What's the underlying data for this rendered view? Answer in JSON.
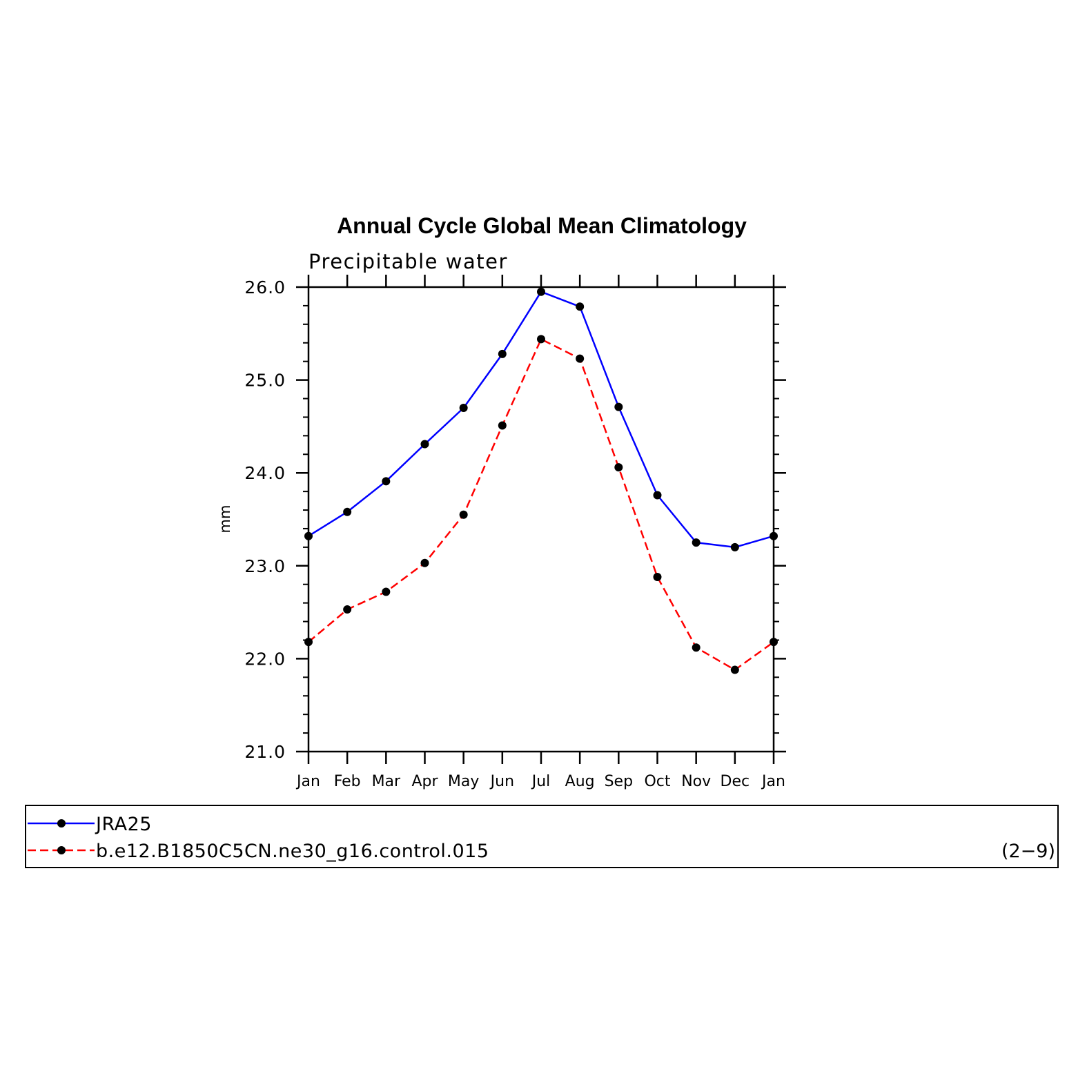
{
  "chart_data": {
    "type": "line",
    "title": "Annual Cycle Global Mean Climatology",
    "subtitle": "Precipitable water",
    "xlabel": "",
    "ylabel": "mm",
    "ylim": [
      21.0,
      26.0
    ],
    "yticks": [
      "21.0",
      "22.0",
      "23.0",
      "24.0",
      "25.0",
      "26.0"
    ],
    "categories": [
      "Jan",
      "Feb",
      "Mar",
      "Apr",
      "May",
      "Jun",
      "Jul",
      "Aug",
      "Sep",
      "Oct",
      "Nov",
      "Dec",
      "Jan"
    ],
    "series": [
      {
        "name": "JRA25",
        "color": "#0000ff",
        "dash": "solid",
        "marker": "filled-circle",
        "values": [
          23.32,
          23.58,
          23.91,
          24.31,
          24.7,
          25.28,
          25.95,
          25.79,
          24.71,
          23.76,
          23.25,
          23.2,
          23.32
        ]
      },
      {
        "name": "b.e12.B1850C5CN.ne30_g16.control.015",
        "color": "#ff0000",
        "dash": "dashed",
        "marker": "filled-circle",
        "values": [
          22.18,
          22.53,
          22.72,
          23.03,
          23.55,
          24.51,
          25.44,
          25.23,
          24.06,
          22.88,
          22.12,
          21.88,
          22.18
        ]
      }
    ],
    "legend_position": "bottom",
    "panel_id": "(2−9)"
  }
}
